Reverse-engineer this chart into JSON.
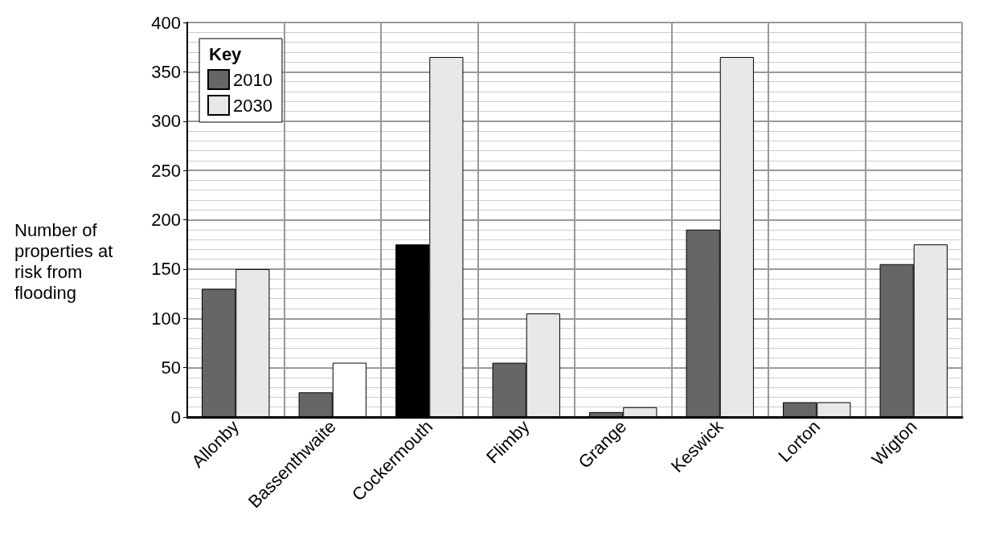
{
  "chart_data": {
    "type": "bar",
    "ylabel": "Number of properties at risk from flooding",
    "legend_title": "Key",
    "categories": [
      "Allonby",
      "Bassenthwaite",
      "Cockermouth",
      "Flimby",
      "Grange",
      "Keswick",
      "Lorton",
      "Wigton"
    ],
    "series": [
      {
        "name": "2010",
        "color": "#666666",
        "colors": [
          "#666666",
          "#666666",
          "#000000",
          "#666666",
          "#666666",
          "#666666",
          "#666666",
          "#666666"
        ],
        "values": [
          130,
          25,
          175,
          55,
          5,
          190,
          15,
          155
        ]
      },
      {
        "name": "2030",
        "color": "#e8e8e8",
        "colors": [
          "#e8e8e8",
          "#ffffff",
          "#e8e8e8",
          "#e8e8e8",
          "#e8e8e8",
          "#e8e8e8",
          "#e8e8e8",
          "#e8e8e8"
        ],
        "values": [
          150,
          55,
          365,
          105,
          10,
          365,
          15,
          175
        ]
      }
    ],
    "ylim": [
      0,
      400
    ],
    "yticks": [
      0,
      50,
      100,
      150,
      200,
      250,
      300,
      350,
      400
    ],
    "grid": true,
    "legend": "top left"
  }
}
